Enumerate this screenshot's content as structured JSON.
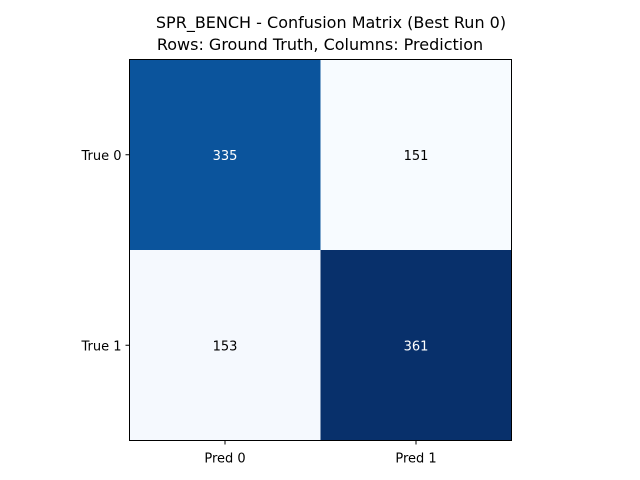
{
  "chart_data": {
    "type": "heatmap",
    "title_lines": [
      "SPR_BENCH - Confusion Matrix (Best Run 0)",
      "Rows: Ground Truth, Columns: Prediction"
    ],
    "row_labels": [
      "True 0",
      "True 1"
    ],
    "col_labels": [
      "Pred 0",
      "Pred 1"
    ],
    "values": [
      [
        335,
        151
      ],
      [
        153,
        361
      ]
    ],
    "colormap": "Blues",
    "colors": {
      "cells": [
        [
          "#0b549c",
          "#f7fbff"
        ],
        [
          "#f5f9fe",
          "#08306b"
        ]
      ],
      "text_dark": "#000000",
      "text_light": "#ffffff",
      "frame": "#000000"
    }
  }
}
